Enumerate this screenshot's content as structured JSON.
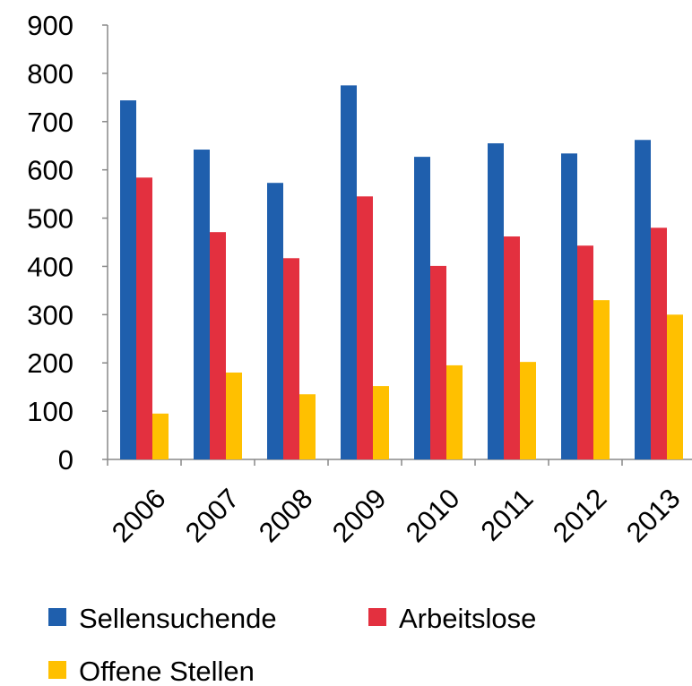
{
  "chart_data": {
    "type": "bar",
    "categories": [
      "2006",
      "2007",
      "2008",
      "2009",
      "2010",
      "2011",
      "2012",
      "2013"
    ],
    "series": [
      {
        "name": "Sellensuchende",
        "color": "#1f5fad",
        "values": [
          744,
          642,
          573,
          775,
          627,
          655,
          634,
          662
        ]
      },
      {
        "name": "Arbeitslose",
        "color": "#e3303f",
        "values": [
          584,
          471,
          417,
          545,
          401,
          462,
          443,
          480
        ]
      },
      {
        "name": "Offene Stellen",
        "color": "#ffc000",
        "values": [
          95,
          180,
          135,
          152,
          195,
          202,
          330,
          300
        ]
      }
    ],
    "ylim": [
      0,
      900
    ],
    "yticks": [
      0,
      100,
      200,
      300,
      400,
      500,
      600,
      700,
      800,
      900
    ],
    "grid": false
  }
}
